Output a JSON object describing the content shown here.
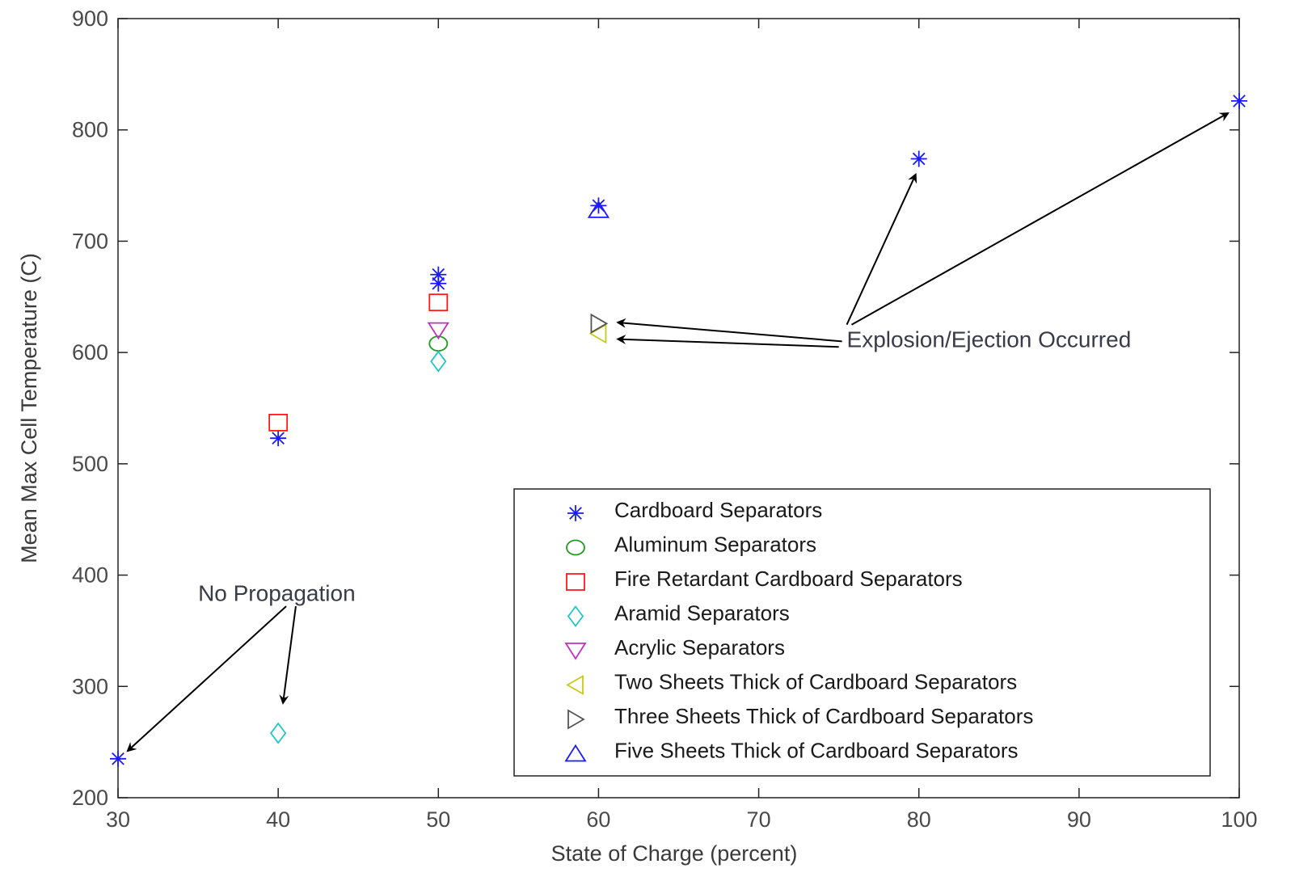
{
  "chart_data": {
    "type": "scatter",
    "title": "",
    "xlabel": "State of Charge (percent)",
    "ylabel": "Mean Max Cell Temperature (C)",
    "xlim": [
      30,
      100
    ],
    "ylim": [
      200,
      900
    ],
    "xticks": [
      30,
      40,
      50,
      60,
      70,
      80,
      90,
      100
    ],
    "yticks": [
      200,
      300,
      400,
      500,
      600,
      700,
      800,
      900
    ],
    "xtick_labels": [
      "30",
      "40",
      "50",
      "60",
      "70",
      "80",
      "90",
      "100"
    ],
    "ytick_labels": [
      "200",
      "300",
      "400",
      "500",
      "600",
      "700",
      "800",
      "900"
    ],
    "grid": false,
    "legend_position": "lower-right",
    "series": [
      {
        "name": "Cardboard Separators",
        "marker": "asterisk",
        "color": "#1a1aff",
        "points": [
          [
            30,
            235
          ],
          [
            40,
            523
          ],
          [
            50,
            662
          ],
          [
            50,
            670
          ],
          [
            60,
            732
          ],
          [
            80,
            774
          ],
          [
            100,
            826
          ]
        ]
      },
      {
        "name": "Aluminum Separators",
        "marker": "circle",
        "color": "#1f9a1f",
        "points": [
          [
            50,
            608
          ]
        ]
      },
      {
        "name": "Fire Retardant Cardboard Separators",
        "marker": "square",
        "color": "#ff1a1a",
        "points": [
          [
            40,
            537
          ],
          [
            50,
            645
          ]
        ]
      },
      {
        "name": "Aramid Separators",
        "marker": "diamond",
        "color": "#20c6c6",
        "points": [
          [
            40,
            258
          ],
          [
            50,
            592
          ]
        ]
      },
      {
        "name": "Acrylic Separators",
        "marker": "triangle-down",
        "color": "#c030c0",
        "points": [
          [
            50,
            620
          ]
        ]
      },
      {
        "name": "Two Sheets Thick of Cardboard Separators",
        "marker": "triangle-left",
        "color": "#c8c81a",
        "points": [
          [
            60,
            617
          ]
        ]
      },
      {
        "name": "Three Sheets Thick of Cardboard Separators",
        "marker": "triangle-right",
        "color": "#555555",
        "points": [
          [
            60,
            626
          ]
        ]
      },
      {
        "name": "Five Sheets Thick of Cardboard Separators",
        "marker": "triangle-up",
        "color": "#1a1aff",
        "points": [
          [
            60,
            728
          ]
        ]
      }
    ],
    "annotations": [
      {
        "text": "Explosion/Ejection Occurred",
        "anchor": [
          75.5,
          612
        ],
        "arrows": [
          {
            "from": [
              75.5,
              625
            ],
            "to": [
              79.8,
              760
            ]
          },
          {
            "from": [
              75.8,
              625
            ],
            "to": [
              99.3,
              815
            ]
          },
          {
            "from": [
              75.2,
              610
            ],
            "to": [
              61.2,
              627
            ]
          },
          {
            "from": [
              75,
              605
            ],
            "to": [
              61.2,
              612
            ]
          }
        ]
      },
      {
        "text": "No Propagation",
        "anchor": [
          35,
          384
        ],
        "arrows": [
          {
            "from": [
              40.5,
              372
            ],
            "to": [
              30.6,
              242
            ]
          },
          {
            "from": [
              41.1,
              372
            ],
            "to": [
              40.3,
              285
            ]
          }
        ]
      }
    ]
  }
}
